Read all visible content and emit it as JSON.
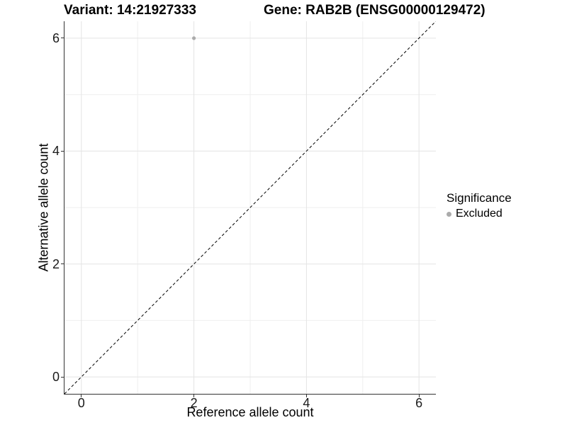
{
  "title": {
    "variant": "Variant: 14:21927333",
    "gene": "Gene: RAB2B (ENSG00000129472)"
  },
  "axes": {
    "x_label": "Reference allele count",
    "y_label": "Alternative allele count"
  },
  "legend": {
    "title": "Significance",
    "items": [
      {
        "label": "Excluded",
        "color": "#ababab"
      }
    ]
  },
  "colors": {
    "excluded_point": "#ababab",
    "axis_line": "#333333",
    "grid_major": "#e4e4e4",
    "grid_minor": "#efefef",
    "reference_line": "#000000",
    "text": "#000000"
  },
  "chart_data": {
    "type": "scatter",
    "title": "Variant: 14:21927333  Gene: RAB2B (ENSG00000129472)",
    "xlabel": "Reference allele count",
    "ylabel": "Alternative allele count",
    "xlim": [
      -0.3,
      6.3
    ],
    "ylim": [
      -0.3,
      6.3
    ],
    "x_ticks": [
      0,
      2,
      4,
      6
    ],
    "y_ticks": [
      0,
      2,
      4,
      6
    ],
    "x_minor_ticks": [
      1,
      3,
      5
    ],
    "y_minor_ticks": [
      1,
      3,
      5
    ],
    "grid": true,
    "legend_position": "right",
    "series": [
      {
        "name": "Excluded",
        "color": "#ababab",
        "points": [
          {
            "x": 2,
            "y": 6
          }
        ]
      }
    ],
    "reference_line": {
      "kind": "abline",
      "slope": 1,
      "intercept": 0,
      "style": "dashed",
      "color": "#000000"
    }
  }
}
